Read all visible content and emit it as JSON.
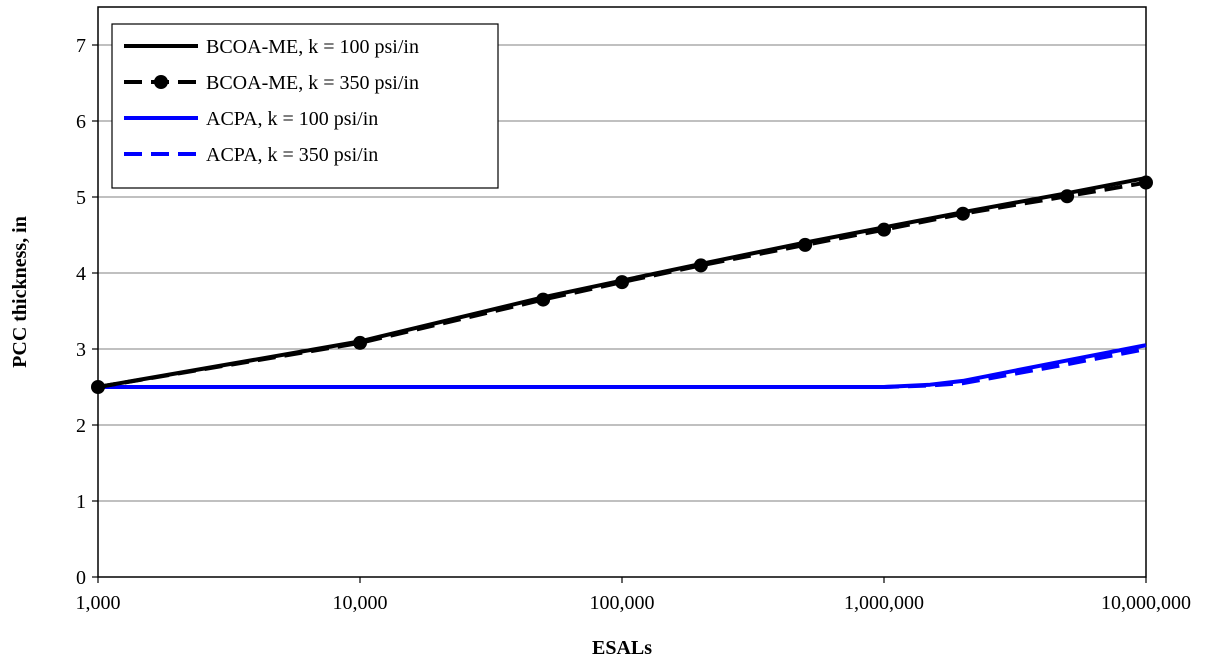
{
  "chart_data": {
    "type": "line",
    "title": "",
    "xlabel": "ESALs",
    "ylabel": "PCC thickness, in",
    "xscale": "log",
    "xlim": [
      1000,
      10000000
    ],
    "ylim": [
      0,
      7.5
    ],
    "x_ticks": [
      1000,
      10000,
      100000,
      1000000,
      10000000
    ],
    "x_tick_labels": [
      "1,000",
      "10,000",
      "100,000",
      "1,000,000",
      "10,000,000"
    ],
    "y_ticks": [
      0,
      1,
      2,
      3,
      4,
      5,
      6,
      7
    ],
    "y_tick_labels": [
      "0",
      "1",
      "2",
      "3",
      "4",
      "5",
      "6",
      "7"
    ],
    "grid": "horizontal",
    "legend": "top-left",
    "series": [
      {
        "name": "BCOA-ME, k = 100 psi/in",
        "color": "#000000",
        "style": "solid",
        "markers": false,
        "points": [
          [
            1000,
            2.5
          ],
          [
            10000,
            3.1
          ],
          [
            50000,
            3.68
          ],
          [
            100000,
            3.9
          ],
          [
            200000,
            4.12
          ],
          [
            500000,
            4.4
          ],
          [
            1000000,
            4.6
          ],
          [
            2000000,
            4.8
          ],
          [
            5000000,
            5.05
          ],
          [
            10000000,
            5.25
          ]
        ]
      },
      {
        "name": "BCOA-ME, k = 350 psi/in",
        "color": "#000000",
        "style": "dashed",
        "markers": true,
        "points": [
          [
            1000,
            2.5
          ],
          [
            10000,
            3.08
          ],
          [
            50000,
            3.65
          ],
          [
            100000,
            3.88
          ],
          [
            200000,
            4.1
          ],
          [
            500000,
            4.37
          ],
          [
            1000000,
            4.57
          ],
          [
            2000000,
            4.78
          ],
          [
            5000000,
            5.01
          ],
          [
            10000000,
            5.19
          ]
        ]
      },
      {
        "name": "ACPA, k = 100 psi/in",
        "color": "#0000ff",
        "style": "solid",
        "markers": false,
        "points": [
          [
            1000,
            2.5
          ],
          [
            10000,
            2.5
          ],
          [
            100000,
            2.5
          ],
          [
            1000000,
            2.5
          ],
          [
            1500000,
            2.53
          ],
          [
            2000000,
            2.58
          ],
          [
            5000000,
            2.85
          ],
          [
            10000000,
            3.05
          ]
        ]
      },
      {
        "name": "ACPA, k = 350 psi/in",
        "color": "#0000ff",
        "style": "dashed",
        "markers": false,
        "points": [
          [
            1000,
            2.5
          ],
          [
            10000,
            2.5
          ],
          [
            100000,
            2.5
          ],
          [
            1000000,
            2.5
          ],
          [
            1500000,
            2.52
          ],
          [
            2000000,
            2.55
          ],
          [
            5000000,
            2.8
          ],
          [
            10000000,
            3.0
          ]
        ]
      }
    ]
  }
}
